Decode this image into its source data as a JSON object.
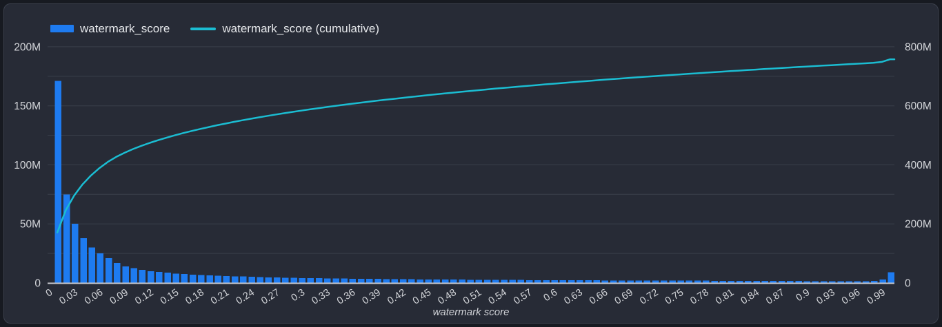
{
  "legend": {
    "items": [
      {
        "label": "watermark_score",
        "swatch": "bar-swatch"
      },
      {
        "label": "watermark_score (cumulative)",
        "swatch": "line-swatch"
      }
    ]
  },
  "colors": {
    "panel_background": "#272b36",
    "page_background": "#171a21",
    "bar_blue": "#1e7bf0",
    "line_cyan": "#1bbdd2",
    "grid": "#3a3f4a",
    "axis_text": "#d4d6da"
  },
  "chart_data": {
    "type": "bar",
    "subtype": "histogram-with-cumulative-line",
    "title": "",
    "grid": "horizontal-only",
    "legend_position": "top-left",
    "x_axis": {
      "title": "watermark score",
      "bin_start": 0,
      "bin_width": 0.01,
      "bin_count": 100,
      "tick_every": 0.03,
      "tick_labels": [
        "0",
        "0.03",
        "0.06",
        "0.09",
        "0.12",
        "0.15",
        "0.18",
        "0.21",
        "0.24",
        "0.27",
        "0.3",
        "0.33",
        "0.36",
        "0.39",
        "0.42",
        "0.45",
        "0.48",
        "0.51",
        "0.54",
        "0.57",
        "0.6",
        "0.63",
        "0.66",
        "0.69",
        "0.72",
        "0.75",
        "0.78",
        "0.81",
        "0.84",
        "0.87",
        "0.9",
        "0.93",
        "0.96",
        "0.99"
      ]
    },
    "y_axis_left": {
      "tick_labels": [
        "0",
        "50M",
        "100M",
        "150M",
        "200M"
      ],
      "tick_values_millions": [
        0,
        50,
        100,
        150,
        200
      ],
      "max_millions": 200,
      "gridline_every_millions": 25
    },
    "y_axis_right": {
      "tick_labels": [
        "0",
        "200M",
        "400M",
        "600M",
        "800M"
      ],
      "tick_values_millions": [
        0,
        200,
        400,
        600,
        800
      ],
      "max_millions": 800
    },
    "series": [
      {
        "name": "watermark_score",
        "type": "bar",
        "axis": "left",
        "color": "#1e7bf0",
        "unit": "millions",
        "values": [
          171,
          75,
          50,
          38,
          30,
          25,
          21,
          17,
          14,
          12.5,
          11,
          10,
          9.2,
          8.6,
          8,
          7.5,
          7.1,
          6.7,
          6.4,
          6.1,
          5.8,
          5.6,
          5.4,
          5.2,
          5,
          4.8,
          4.7,
          4.5,
          4.4,
          4.2,
          4.1,
          4,
          3.9,
          3.8,
          3.7,
          3.6,
          3.5,
          3.4,
          3.4,
          3.3,
          3.2,
          3.2,
          3.1,
          3,
          3,
          2.9,
          2.9,
          2.8,
          2.8,
          2.7,
          2.7,
          2.6,
          2.6,
          2.5,
          2.5,
          2.5,
          2.4,
          2.4,
          2.4,
          2.3,
          2.3,
          2.3,
          2.2,
          2.2,
          2.2,
          2.1,
          2.1,
          2.1,
          2.1,
          2,
          2,
          2,
          2,
          1.9,
          1.9,
          1.9,
          1.9,
          1.9,
          1.8,
          1.8,
          1.8,
          1.8,
          1.8,
          1.7,
          1.7,
          1.7,
          1.7,
          1.7,
          1.7,
          1.6,
          1.6,
          1.6,
          1.6,
          1.6,
          1.6,
          1.5,
          1.5,
          1.8,
          3,
          9
        ]
      },
      {
        "name": "watermark_score (cumulative)",
        "type": "line",
        "axis": "right",
        "color": "#1bbdd2",
        "unit": "millions",
        "derived": "cumulative_sum_of_watermark_score",
        "end_value_millions_approx": 757
      }
    ]
  }
}
